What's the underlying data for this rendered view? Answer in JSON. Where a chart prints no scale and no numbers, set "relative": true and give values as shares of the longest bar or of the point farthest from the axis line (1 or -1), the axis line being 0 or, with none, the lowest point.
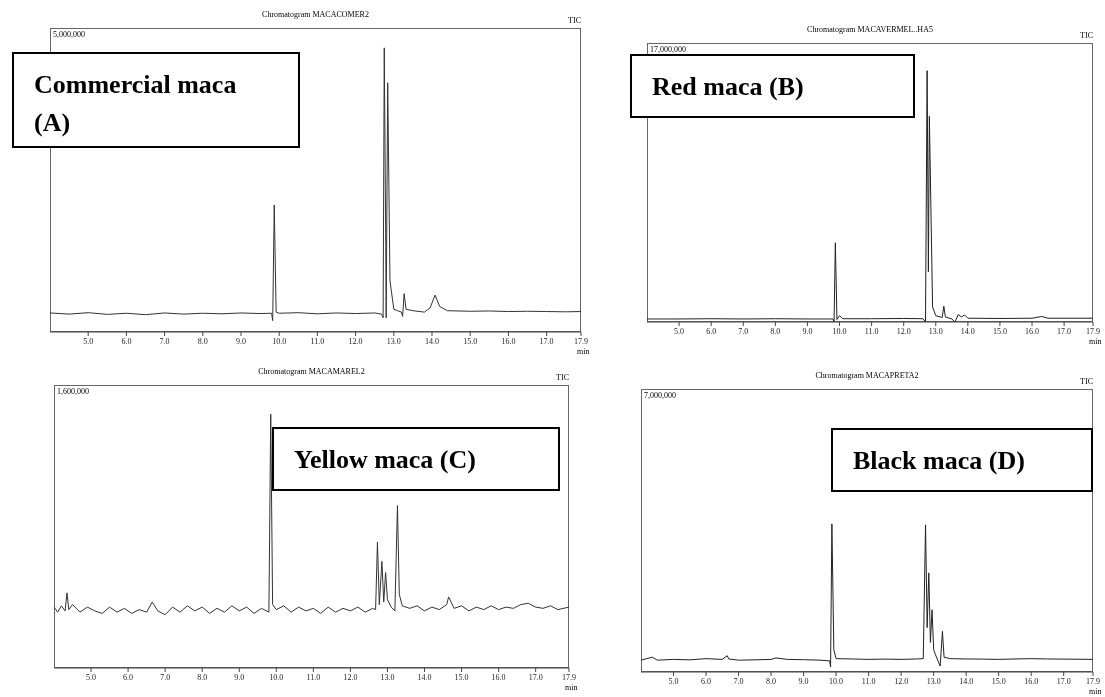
{
  "chart_data": [
    {
      "type": "line",
      "title": "Chromatogram MACACOMER2",
      "relative": true,
      "xlabel": "min",
      "annotations": [
        "Commercial maca (A)",
        "5,000,000",
        "TIC"
      ],
      "xlim": [
        4.0,
        17.9
      ],
      "xticks": [
        {
          "value": 5,
          "label": "5.0"
        },
        {
          "value": 6,
          "label": "6.0"
        },
        {
          "value": 7,
          "label": "7.0"
        },
        {
          "value": 8,
          "label": "8.0"
        },
        {
          "value": 9,
          "label": "9.0"
        },
        {
          "value": 10,
          "label": "10.0"
        },
        {
          "value": 11,
          "label": "11.0"
        },
        {
          "value": 12,
          "label": "12.0"
        },
        {
          "value": 13,
          "label": "13.0"
        },
        {
          "value": 14,
          "label": "14.0"
        },
        {
          "value": 15,
          "label": "15.0"
        },
        {
          "value": 16,
          "label": "16.0"
        },
        {
          "value": 17,
          "label": "17.0"
        },
        {
          "value": 17.9,
          "label": "17.9"
        }
      ],
      "series": [
        {
          "color": "#333333",
          "x": [
            4.0,
            4.5,
            5.0,
            5.5,
            6.0,
            6.5,
            7.0,
            7.5,
            8.0,
            8.5,
            9.0,
            9.5,
            9.8,
            9.83,
            9.87,
            9.92,
            10.0,
            10.5,
            11.0,
            11.5,
            12.0,
            12.5,
            12.68,
            12.72,
            12.75,
            12.79,
            12.8,
            12.84,
            12.9,
            13.0,
            13.1,
            13.2,
            13.23,
            13.27,
            13.32,
            13.5,
            13.8,
            13.95,
            14.08,
            14.2,
            14.4,
            15.0,
            15.5,
            16.0,
            16.5,
            17.0,
            17.5,
            17.9
          ],
          "values": [
            0.067,
            0.063,
            0.068,
            0.062,
            0.066,
            0.061,
            0.067,
            0.063,
            0.066,
            0.064,
            0.067,
            0.065,
            0.066,
            0.04,
            0.447,
            0.07,
            0.066,
            0.068,
            0.064,
            0.067,
            0.065,
            0.067,
            0.063,
            0.05,
            1.0,
            0.3,
            0.05,
            0.877,
            0.18,
            0.08,
            0.075,
            0.07,
            0.055,
            0.135,
            0.08,
            0.075,
            0.07,
            0.085,
            0.13,
            0.09,
            0.075,
            0.073,
            0.074,
            0.072,
            0.073,
            0.072,
            0.071,
            0.072
          ]
        }
      ]
    },
    {
      "type": "line",
      "title": "Chromatogram MACAVERMEL..HA5",
      "relative": true,
      "xlabel": "min",
      "annotations": [
        "Red maca (B)",
        "17,000,000",
        "TIC"
      ],
      "xlim": [
        4.0,
        17.9
      ],
      "xticks": [
        {
          "value": 5,
          "label": "5.0"
        },
        {
          "value": 6,
          "label": "6.0"
        },
        {
          "value": 7,
          "label": "7.0"
        },
        {
          "value": 8,
          "label": "8.0"
        },
        {
          "value": 9,
          "label": "9.0"
        },
        {
          "value": 10,
          "label": "10.0"
        },
        {
          "value": 11,
          "label": "11.0"
        },
        {
          "value": 12,
          "label": "12.0"
        },
        {
          "value": 13,
          "label": "13.0"
        },
        {
          "value": 14,
          "label": "14.0"
        },
        {
          "value": 15,
          "label": "15.0"
        },
        {
          "value": 16,
          "label": "16.0"
        },
        {
          "value": 17,
          "label": "17.0"
        },
        {
          "value": 17.9,
          "label": "17.9"
        }
      ],
      "series": [
        {
          "color": "#222222",
          "x": [
            4.0,
            5.0,
            6.0,
            7.0,
            8.0,
            9.0,
            9.8,
            9.83,
            9.87,
            9.92,
            10.0,
            10.1,
            11.0,
            12.0,
            12.6,
            12.68,
            12.73,
            12.77,
            12.8,
            12.9,
            13.0,
            13.2,
            13.25,
            13.3,
            13.5,
            13.6,
            13.7,
            13.8,
            13.9,
            14.0,
            15.0,
            16.0,
            16.3,
            16.5,
            17.0,
            17.9
          ],
          "values": [
            0.012,
            0.012,
            0.013,
            0.012,
            0.013,
            0.012,
            0.012,
            0.0,
            0.315,
            0.01,
            0.025,
            0.013,
            0.013,
            0.014,
            0.013,
            0.0,
            1.0,
            0.2,
            0.818,
            0.06,
            0.025,
            0.018,
            0.063,
            0.02,
            0.012,
            0.0,
            0.03,
            0.02,
            0.028,
            0.015,
            0.014,
            0.015,
            0.022,
            0.015,
            0.015,
            0.015
          ]
        }
      ]
    },
    {
      "type": "line",
      "title": "Chromatogram MACAMAREL2",
      "relative": true,
      "xlabel": "min",
      "annotations": [
        "Yellow maca (C)",
        "1,600,000",
        "TIC"
      ],
      "xlim": [
        4.0,
        17.9
      ],
      "xticks": [
        {
          "value": 5,
          "label": "5.0"
        },
        {
          "value": 6,
          "label": "6.0"
        },
        {
          "value": 7,
          "label": "7.0"
        },
        {
          "value": 8,
          "label": "8.0"
        },
        {
          "value": 9,
          "label": "9.0"
        },
        {
          "value": 10,
          "label": "10.0"
        },
        {
          "value": 11,
          "label": "11.0"
        },
        {
          "value": 12,
          "label": "12.0"
        },
        {
          "value": 13,
          "label": "13.0"
        },
        {
          "value": 14,
          "label": "14.0"
        },
        {
          "value": 15,
          "label": "15.0"
        },
        {
          "value": 16,
          "label": "16.0"
        },
        {
          "value": 17,
          "label": "17.0"
        },
        {
          "value": 17.9,
          "label": "17.9"
        }
      ],
      "series": [
        {
          "color": "#333333",
          "x": [
            4.0,
            4.1,
            4.2,
            4.3,
            4.35,
            4.4,
            4.5,
            4.7,
            4.9,
            5.1,
            5.3,
            5.5,
            5.7,
            5.9,
            6.1,
            6.3,
            6.5,
            6.65,
            6.8,
            7.0,
            7.2,
            7.4,
            7.6,
            7.8,
            8.0,
            8.2,
            8.4,
            8.6,
            8.8,
            9.0,
            9.2,
            9.4,
            9.6,
            9.8,
            9.85,
            9.9,
            10.0,
            10.2,
            10.4,
            10.6,
            10.8,
            11.0,
            11.2,
            11.4,
            11.6,
            11.8,
            12.0,
            12.2,
            12.4,
            12.6,
            12.68,
            12.73,
            12.78,
            12.85,
            12.9,
            12.95,
            13.0,
            13.1,
            13.2,
            13.27,
            13.32,
            13.4,
            13.6,
            13.8,
            14.0,
            14.2,
            14.4,
            14.6,
            14.65,
            14.8,
            15.0,
            15.2,
            15.4,
            15.6,
            15.8,
            16.0,
            16.2,
            16.4,
            16.6,
            16.8,
            17.0,
            17.2,
            17.4,
            17.6,
            17.9
          ],
          "values": [
            0.24,
            0.22,
            0.245,
            0.225,
            0.296,
            0.23,
            0.25,
            0.22,
            0.24,
            0.225,
            0.215,
            0.24,
            0.22,
            0.235,
            0.215,
            0.23,
            0.22,
            0.26,
            0.225,
            0.21,
            0.24,
            0.22,
            0.245,
            0.225,
            0.24,
            0.215,
            0.235,
            0.22,
            0.245,
            0.225,
            0.24,
            0.215,
            0.235,
            0.22,
            1.0,
            0.25,
            0.23,
            0.245,
            0.22,
            0.24,
            0.225,
            0.235,
            0.215,
            0.24,
            0.22,
            0.235,
            0.225,
            0.24,
            0.22,
            0.235,
            0.23,
            0.496,
            0.25,
            0.42,
            0.26,
            0.376,
            0.27,
            0.24,
            0.225,
            0.64,
            0.29,
            0.245,
            0.235,
            0.245,
            0.225,
            0.24,
            0.23,
            0.25,
            0.28,
            0.235,
            0.245,
            0.225,
            0.24,
            0.23,
            0.245,
            0.23,
            0.24,
            0.235,
            0.25,
            0.255,
            0.24,
            0.235,
            0.245,
            0.23,
            0.24
          ]
        }
      ]
    },
    {
      "type": "line",
      "title": "Chromatogram MACAPRETA2",
      "relative": true,
      "xlabel": "min",
      "annotations": [
        "Black maca (D)",
        "7,000,000",
        "TIC"
      ],
      "xlim": [
        4.0,
        17.9
      ],
      "xticks": [
        {
          "value": 5,
          "label": "5.0"
        },
        {
          "value": 6,
          "label": "6.0"
        },
        {
          "value": 7,
          "label": "7.0"
        },
        {
          "value": 8,
          "label": "8.0"
        },
        {
          "value": 9,
          "label": "9.0"
        },
        {
          "value": 10,
          "label": "10.0"
        },
        {
          "value": 11,
          "label": "11.0"
        },
        {
          "value": 12,
          "label": "12.0"
        },
        {
          "value": 13,
          "label": "13.0"
        },
        {
          "value": 14,
          "label": "14.0"
        },
        {
          "value": 15,
          "label": "15.0"
        },
        {
          "value": 16,
          "label": "16.0"
        },
        {
          "value": 17,
          "label": "17.0"
        },
        {
          "value": 17.9,
          "label": "17.9"
        }
      ],
      "series": [
        {
          "color": "#222222",
          "x": [
            4.0,
            4.35,
            4.5,
            5.0,
            5.5,
            6.0,
            6.5,
            6.65,
            6.7,
            7.0,
            7.5,
            8.0,
            8.15,
            8.5,
            9.0,
            9.5,
            9.8,
            9.83,
            9.87,
            9.93,
            10.0,
            10.5,
            11.0,
            11.5,
            12.0,
            12.5,
            12.68,
            12.75,
            12.8,
            12.85,
            12.9,
            12.95,
            13.0,
            13.05,
            13.2,
            13.27,
            13.32,
            13.5,
            14.0,
            14.5,
            15.0,
            15.5,
            16.0,
            16.5,
            17.0,
            17.9
          ],
          "values": [
            0.08,
            0.1,
            0.08,
            0.085,
            0.082,
            0.09,
            0.085,
            0.11,
            0.088,
            0.08,
            0.082,
            0.085,
            0.095,
            0.085,
            0.083,
            0.08,
            0.075,
            0.035,
            1.0,
            0.15,
            0.09,
            0.088,
            0.085,
            0.087,
            0.085,
            0.088,
            0.09,
            0.993,
            0.3,
            0.669,
            0.2,
            0.42,
            0.15,
            0.12,
            0.04,
            0.275,
            0.1,
            0.09,
            0.088,
            0.087,
            0.085,
            0.088,
            0.09,
            0.088,
            0.087,
            0.085
          ]
        }
      ]
    }
  ]
}
